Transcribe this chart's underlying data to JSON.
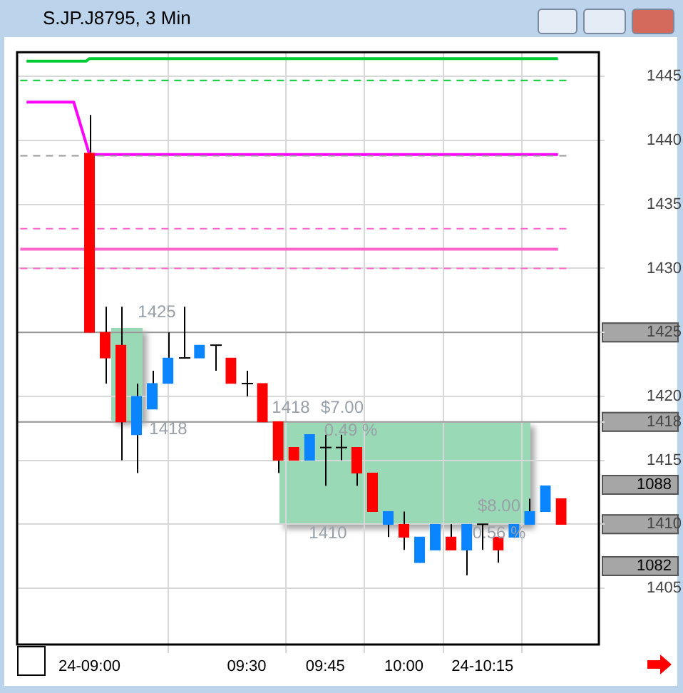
{
  "chart_data": {
    "type": "candlestick",
    "title": "S.JP.J8795, 3 Min",
    "x": [
      9,
      9.05,
      9.1,
      9.15,
      9.2,
      9.25,
      9.3,
      9.35,
      9.4,
      9.45,
      9.5,
      9.55,
      9.6,
      9.65,
      9.7,
      9.75,
      9.8,
      9.85,
      9.9,
      9.95,
      10,
      10.05,
      10.1,
      10.15,
      10.2,
      10.25,
      10.3,
      10.35,
      10.4,
      10.45,
      10.5
    ],
    "ohlc": [
      [
        1439,
        1442,
        1425,
        1425
      ],
      [
        1425,
        1427,
        1421,
        1423
      ],
      [
        1424,
        1427,
        1415,
        1418
      ],
      [
        1417,
        1421,
        1414,
        1420
      ],
      [
        1419,
        1422,
        1419,
        1421
      ],
      [
        1421,
        1425,
        1421,
        1423
      ],
      [
        1423,
        1427,
        1423,
        1423
      ],
      [
        1423,
        1424,
        1423,
        1424
      ],
      [
        1424,
        1424,
        1422,
        1424
      ],
      [
        1423,
        1423,
        1421,
        1421
      ],
      [
        1421,
        1422,
        1420,
        1421
      ],
      [
        1421,
        1421,
        1418,
        1418
      ],
      [
        1418,
        1418,
        1414,
        1415
      ],
      [
        1416,
        1416,
        1415,
        1415
      ],
      [
        1415,
        1417,
        1415,
        1417
      ],
      [
        1416,
        1417,
        1413,
        1416
      ],
      [
        1416,
        1417,
        1415,
        1416
      ],
      [
        1416,
        1416,
        1413,
        1414
      ],
      [
        1414,
        1414,
        1411,
        1411
      ],
      [
        1410,
        1411,
        1409,
        1411
      ],
      [
        1410,
        1411,
        1408,
        1409
      ],
      [
        1407,
        1409,
        1407,
        1409
      ],
      [
        1408,
        1410,
        1408,
        1410
      ],
      [
        1409,
        1410,
        1408,
        1408
      ],
      [
        1408,
        1410,
        1406,
        1410
      ],
      [
        1410,
        1410,
        1408,
        1410
      ],
      [
        1409,
        1409,
        1407,
        1408
      ],
      [
        1409,
        1410,
        1409,
        1410
      ],
      [
        1410,
        1412,
        1410,
        1411
      ],
      [
        1411,
        1413,
        1411,
        1413
      ],
      [
        1412,
        1412,
        1410,
        1410
      ]
    ],
    "colors": [
      "#ff0000",
      "#ff0000",
      "#ff0000",
      "#0a84ff",
      "#0a84ff",
      "#0a84ff",
      "#000000",
      "#0a84ff",
      "#000000",
      "#ff0000",
      "#000000",
      "#ff0000",
      "#ff0000",
      "#ff0000",
      "#0a84ff",
      "#000000",
      "#000000",
      "#ff0000",
      "#ff0000",
      "#0a84ff",
      "#ff0000",
      "#0a84ff",
      "#0a84ff",
      "#ff0000",
      "#0a84ff",
      "#000000",
      "#ff0000",
      "#0a84ff",
      "#0a84ff",
      "#0a84ff",
      "#ff0000"
    ],
    "series": [
      {
        "type": "line",
        "color": "#00cc33",
        "line_style": "solid",
        "x": [
          8.8,
          8.99,
          9,
          10.49
        ],
        "values": [
          1446.2,
          1446.2,
          1446.4,
          1446.4
        ]
      },
      {
        "type": "line",
        "color": "#00cc33",
        "line_style": "dashed",
        "x": [
          8.78,
          10.52
        ],
        "values": [
          1444.7,
          1444.7
        ]
      },
      {
        "type": "line",
        "color": "#999999",
        "line_style": "dashed",
        "x": [
          8.78,
          10.52
        ],
        "values": [
          1438.8,
          1438.8
        ]
      },
      {
        "type": "line",
        "color": "#ff00ff",
        "line_style": "solid",
        "x": [
          8.8,
          8.95,
          9,
          10.49
        ],
        "values": [
          1443,
          1443,
          1438.9,
          1438.9
        ]
      },
      {
        "type": "line",
        "color": "#ff66cc",
        "line_style": "dashed",
        "x": [
          8.78,
          10.52
        ],
        "values": [
          1433.1,
          1433.1
        ]
      },
      {
        "type": "line",
        "color": "#ff66cc",
        "line_style": "solid",
        "x": [
          8.78,
          10.49
        ],
        "values": [
          1431.5,
          1431.5
        ]
      },
      {
        "type": "line",
        "color": "#ff66cc",
        "line_style": "dashed",
        "x": [
          8.78,
          10.52
        ],
        "values": [
          1430,
          1430
        ]
      }
    ],
    "ref_lines": [
      {
        "axis": "y",
        "value": 1425,
        "color": "#999999"
      },
      {
        "axis": "y",
        "value": 1418,
        "color": "#999999"
      }
    ],
    "annotations": [
      "1425",
      "1418",
      "1418",
      "$7.00",
      "0.49 %",
      "1410",
      "$8.00",
      "0.56 %",
      "1088",
      "1082"
    ],
    "xlim": [
      8.77,
      10.62
    ],
    "ylim": [
      1400.6,
      1446.9
    ],
    "xticks": [
      {
        "value": 9,
        "label": "24-09:00"
      },
      {
        "value": 9.5,
        "label": "09:30"
      },
      {
        "value": 9.75,
        "label": "09:45"
      },
      {
        "value": 10,
        "label": "10:00"
      },
      {
        "value": 10.25,
        "label": "24-10:15"
      }
    ],
    "yticks": [
      1405,
      1415,
      1420,
      1430,
      1435,
      1440,
      1445,
      {
        "value": 1425,
        "label": "1425"
      },
      {
        "value": 1418,
        "label": "1418"
      },
      {
        "value": 1410,
        "label": "1410"
      }
    ],
    "grid": true,
    "legend": false
  }
}
